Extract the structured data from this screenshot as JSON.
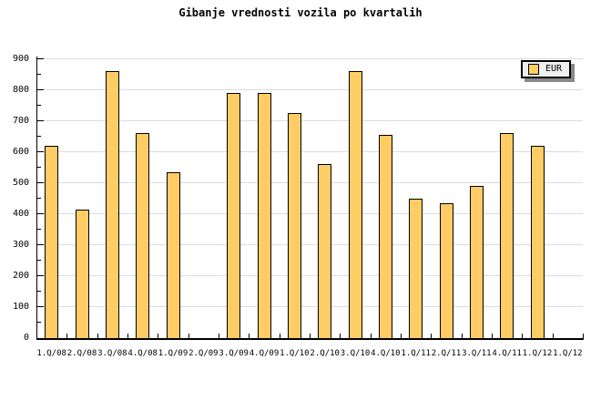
{
  "title": "Gibanje vrednosti vozila po kvartalih",
  "legend": {
    "label": "EUR"
  },
  "colors": {
    "background": "#FFFFFF",
    "bar_fill": "#FFCC66",
    "bar_border": "#000000",
    "grid": "#DCDCDC",
    "axis": "#000000",
    "text": "#000000",
    "legend_bg": "#EEEEEE",
    "legend_border": "#000000",
    "legend_shadow": "#888888"
  },
  "chart_data": {
    "type": "bar",
    "title": "Gibanje vrednosti vozila po kvartalih",
    "categories": [
      "1.Q/08",
      "2.Q/08",
      "3.Q/08",
      "4.Q/08",
      "1.Q/09",
      "2.Q/09",
      "3.Q/09",
      "4.Q/09",
      "1.Q/10",
      "2.Q/10",
      "3.Q/10",
      "4.Q/10",
      "1.Q/11",
      "2.Q/11",
      "3.Q/11",
      "4.Q/11",
      "1.Q/12",
      "1.Q/12"
    ],
    "series": [
      {
        "name": "EUR",
        "values": [
          620,
          415,
          860,
          660,
          535,
          null,
          790,
          790,
          725,
          560,
          860,
          655,
          450,
          435,
          490,
          660,
          620,
          null
        ]
      }
    ],
    "xlabel": "",
    "ylabel": "",
    "ylim": [
      0,
      900
    ],
    "ytick_step": 100,
    "yminor_step": 50,
    "ytick_labels": [
      "0",
      "100",
      "200",
      "300",
      "400",
      "500",
      "600",
      "700",
      "800",
      "900"
    ],
    "grid": "horizontal-major",
    "legend_position": "top-right"
  }
}
